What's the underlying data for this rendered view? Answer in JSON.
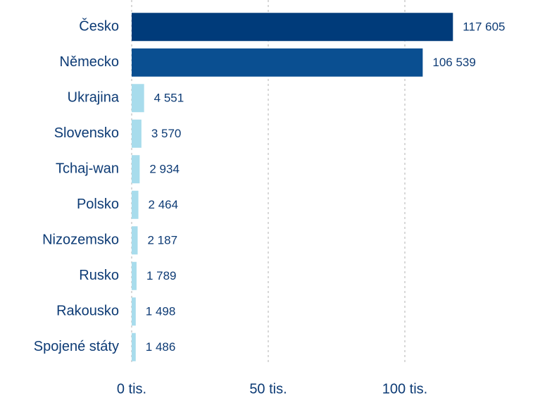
{
  "chart_data": {
    "type": "bar",
    "orientation": "horizontal",
    "categories": [
      "Česko",
      "Německo",
      "Ukrajina",
      "Slovensko",
      "Tchaj-wan",
      "Polsko",
      "Nizozemsko",
      "Rusko",
      "Rakousko",
      "Spojené státy"
    ],
    "values": [
      117605,
      106539,
      4551,
      3570,
      2934,
      2464,
      2187,
      1789,
      1498,
      1486
    ],
    "value_labels": [
      "117 605",
      "106 539",
      "4 551",
      "3 570",
      "2 934",
      "2 464",
      "2 187",
      "1 789",
      "1 498",
      "1 486"
    ],
    "colors": [
      "#003b7a",
      "#0a4f91",
      "#a8dcec",
      "#a8dcec",
      "#a8dcec",
      "#a8dcec",
      "#a8dcec",
      "#a8dcec",
      "#a8dcec",
      "#a8dcec"
    ],
    "xlim": [
      0,
      150000
    ],
    "xticks": [
      {
        "value": 0,
        "label": "0 tis."
      },
      {
        "value": 50000,
        "label": "50 tis."
      },
      {
        "value": 100000,
        "label": "100 tis."
      }
    ],
    "grid": true
  }
}
